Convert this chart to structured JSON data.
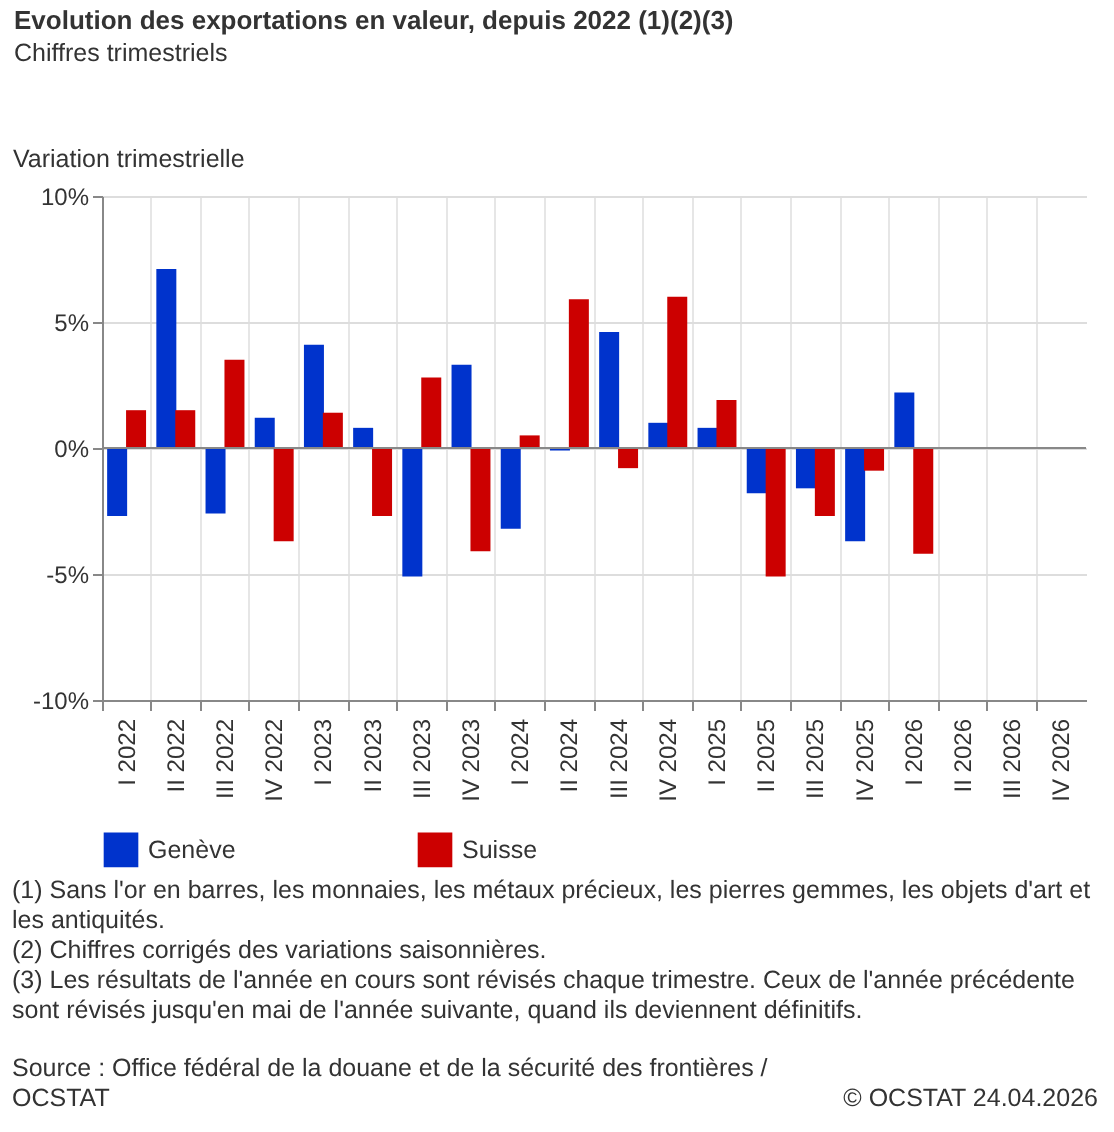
{
  "chart_data": {
    "type": "bar",
    "title": "Evolution des exportations en valeur, depuis 2022 (1)(2)(3)",
    "subtitle": "Chiffres trimestriels",
    "ylabel": "Variation trimestrielle",
    "categories": [
      "I 2022",
      "II 2022",
      "III 2022",
      "IV 2022",
      "I 2023",
      "II 2023",
      "III 2023",
      "IV 2023",
      "I 2024",
      "II 2024",
      "III 2024",
      "IV 2024",
      "I 2025",
      "II 2025",
      "III 2025",
      "IV 2025",
      "I 2026",
      "II 2026",
      "III 2026",
      "IV 2026"
    ],
    "series": [
      {
        "name": "Genève",
        "color": "#0033cc",
        "values": [
          -2.7,
          7.1,
          -2.6,
          1.2,
          4.1,
          0.8,
          -5.1,
          3.3,
          -3.2,
          -0.1,
          4.6,
          1.0,
          0.8,
          -1.8,
          -1.6,
          -3.7,
          2.2,
          null,
          null,
          null
        ]
      },
      {
        "name": "Suisse",
        "color": "#cc0000",
        "values": [
          1.5,
          1.5,
          3.5,
          -3.7,
          1.4,
          -2.7,
          2.8,
          -4.1,
          0.5,
          5.9,
          -0.8,
          6.0,
          1.9,
          -5.1,
          -2.7,
          -0.9,
          -4.2,
          null,
          null,
          null
        ]
      }
    ],
    "ylim": [
      -10,
      10
    ],
    "yticks": [
      {
        "value": -10,
        "label": "-10%"
      },
      {
        "value": -5,
        "label": "-5%"
      },
      {
        "value": 0,
        "label": "0%"
      },
      {
        "value": 5,
        "label": "5%"
      },
      {
        "value": 10,
        "label": "10%"
      }
    ],
    "grid": true,
    "legend": "bottom",
    "annotations": [
      "(1) Sans l'or en barres, les monnaies, les métaux précieux, les pierres gemmes, les objets d'art et les antiquités.",
      "(2) Chiffres corrigés des variations saisonnières.",
      "(3) Les résultats de l'année en cours sont révisés chaque trimestre. Ceux de l'année précédente sont révisés jusqu'en mai de l'année suivante, quand ils deviennent définitifs.",
      "Source : Office fédéral de la douane et de la sécurité des frontières / OCSTAT",
      "© OCSTAT 24.04.2026"
    ]
  }
}
